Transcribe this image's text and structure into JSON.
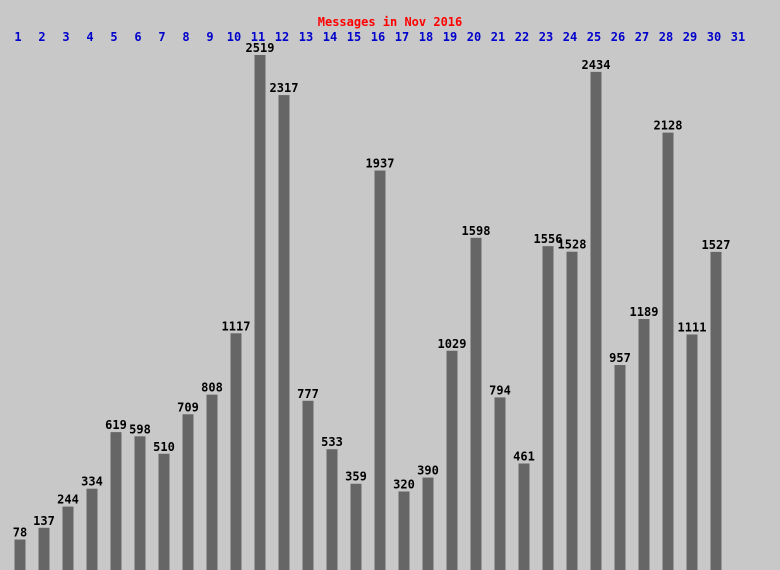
{
  "chart_data": {
    "type": "bar",
    "title": "Messages in Nov 2016",
    "categories": [
      "1",
      "2",
      "3",
      "4",
      "5",
      "6",
      "7",
      "8",
      "9",
      "10",
      "11",
      "12",
      "13",
      "14",
      "15",
      "16",
      "17",
      "18",
      "19",
      "20",
      "21",
      "22",
      "23",
      "24",
      "25",
      "26",
      "27",
      "28",
      "29",
      "30",
      "31"
    ],
    "values": [
      78,
      137,
      244,
      334,
      619,
      598,
      510,
      709,
      808,
      1117,
      2519,
      2317,
      777,
      533,
      359,
      1937,
      320,
      390,
      1029,
      1598,
      794,
      461,
      1556,
      1528,
      2434,
      957,
      1189,
      2128,
      1111,
      1527,
      null
    ],
    "color": "#666666"
  }
}
